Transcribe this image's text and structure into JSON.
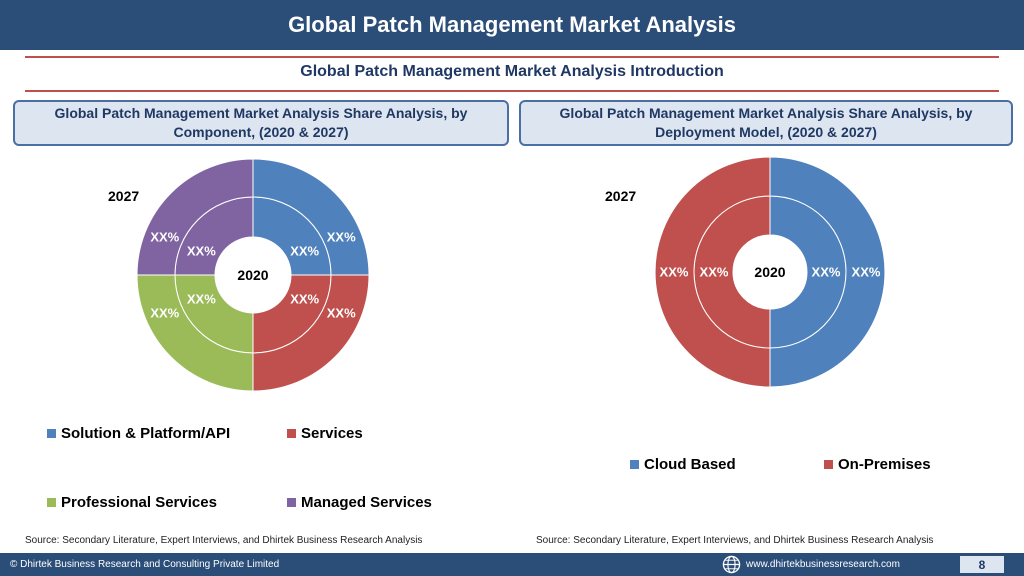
{
  "header": {
    "title": "Global Patch Management Market Analysis"
  },
  "subtitle": "Global Patch Management Market Analysis  Introduction",
  "panels": [
    {
      "title": "Global Patch Management Market Analysis  Share Analysis, by Component, (2020 & 2027)"
    },
    {
      "title": "Global Patch Management Market Analysis  Share Analysis, by Deployment Model, (2020 & 2027)"
    }
  ],
  "chart_data": [
    {
      "type": "donut",
      "title": "Global Patch Management Market Analysis  Share Analysis, by Component, (2020 & 2027)",
      "outer_ring_label": "2027",
      "inner_ring_label": "2020",
      "categories": [
        "Solution & Platform/API",
        "Services",
        "Professional Services",
        "Managed Services"
      ],
      "colors": [
        "#4f81bd",
        "#c0504d",
        "#9bbb59",
        "#8064a2"
      ],
      "series": [
        {
          "name": "2027",
          "values": [
            25,
            25,
            25,
            25
          ],
          "labels": [
            "XX%",
            "XX%",
            "XX%",
            "XX%"
          ]
        },
        {
          "name": "2020",
          "values": [
            25,
            25,
            25,
            25
          ],
          "labels": [
            "XX%",
            "XX%",
            "XX%",
            "XX%"
          ]
        }
      ],
      "legend": "bottom"
    },
    {
      "type": "donut",
      "title": "Global Patch Management Market Analysis  Share Analysis, by Deployment Model, (2020 & 2027)",
      "outer_ring_label": "2027",
      "inner_ring_label": "2020",
      "categories": [
        "Cloud Based",
        "On-Premises"
      ],
      "colors": [
        "#4f81bd",
        "#c0504d"
      ],
      "series": [
        {
          "name": "2027",
          "values": [
            50,
            50
          ],
          "labels": [
            "XX%",
            "XX%"
          ]
        },
        {
          "name": "2020",
          "values": [
            50,
            50
          ],
          "labels": [
            "XX%",
            "XX%"
          ]
        }
      ],
      "legend": "bottom"
    }
  ],
  "sources": [
    "Source: Secondary Literature, Expert Interviews, and Dhirtek Business Research Analysis",
    "Source: Secondary Literature, Expert Interviews, and Dhirtek Business Research Analysis"
  ],
  "footer": {
    "copyright": "© Dhirtek Business Research and Consulting Private Limited",
    "url": "www.dhirtekbusinessresearch.com",
    "page": "8",
    "icon": "globe-icon"
  }
}
